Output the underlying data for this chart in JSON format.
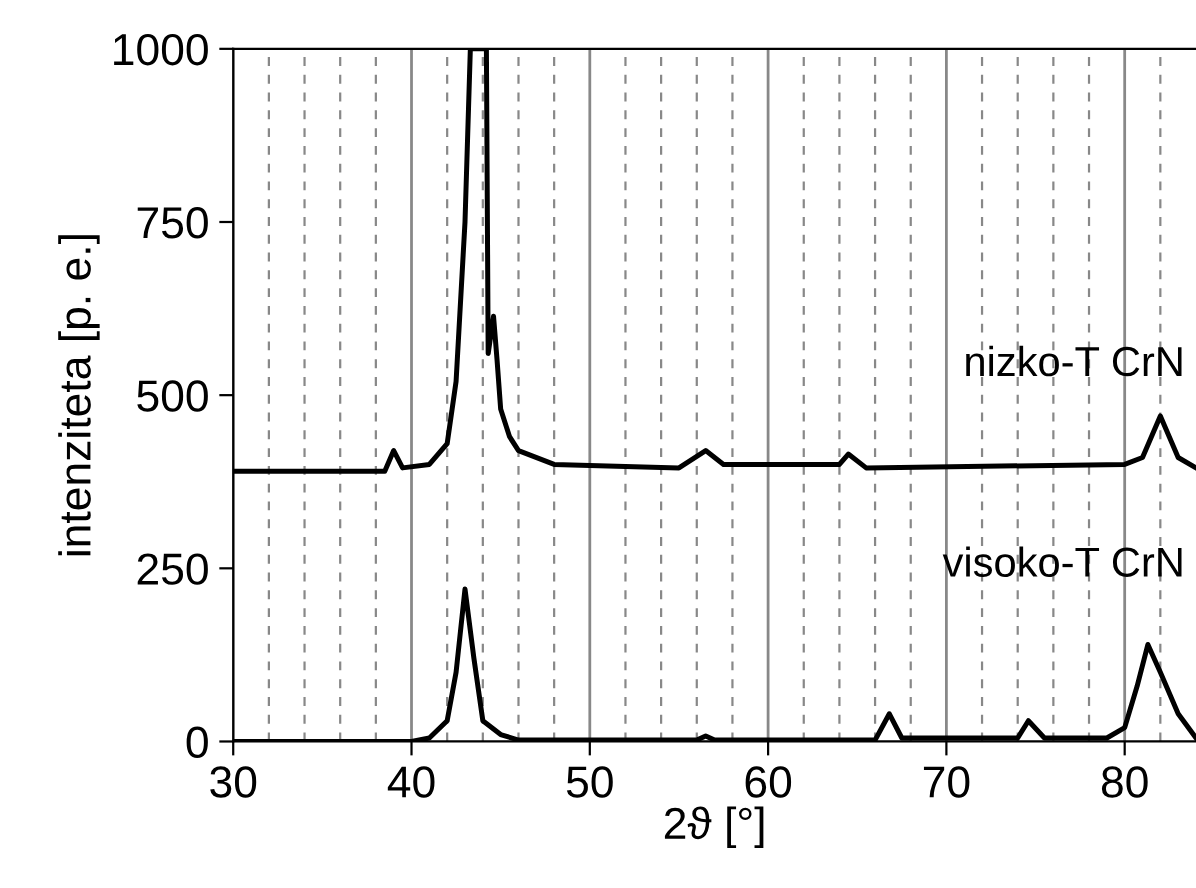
{
  "chart_data": {
    "type": "line",
    "xlabel": "2ϑ [°]",
    "ylabel": "intenziteta [p. e.]",
    "xlim": [
      30,
      84
    ],
    "ylim": [
      0,
      1000
    ],
    "xticks": [
      30,
      {
        "value": 32,
        "label": null
      },
      {
        "value": 34,
        "label": null
      },
      {
        "value": 36,
        "label": null
      },
      {
        "value": 38,
        "label": null
      },
      40,
      {
        "value": 42,
        "label": null
      },
      {
        "value": 44,
        "label": null
      },
      {
        "value": 46,
        "label": null
      },
      {
        "value": 48,
        "label": null
      },
      50,
      {
        "value": 52,
        "label": null
      },
      {
        "value": 54,
        "label": null
      },
      {
        "value": 56,
        "label": null
      },
      {
        "value": 58,
        "label": null
      },
      60,
      {
        "value": 62,
        "label": null
      },
      {
        "value": 64,
        "label": null
      },
      {
        "value": 66,
        "label": null
      },
      {
        "value": 68,
        "label": null
      },
      70,
      {
        "value": 72,
        "label": null
      },
      {
        "value": 74,
        "label": null
      },
      {
        "value": 76,
        "label": null
      },
      {
        "value": 78,
        "label": null
      },
      80,
      {
        "value": 82,
        "label": null
      }
    ],
    "yticks": [
      0,
      250,
      500,
      750,
      1000
    ],
    "grid": "x",
    "legend": false,
    "marker": "none",
    "line_style": "solid",
    "series": [
      {
        "name": "nizko-T CrN",
        "color": "#000000",
        "x": [
          30,
          38.5,
          39,
          39.5,
          41,
          42,
          42.5,
          43,
          43.3,
          44.2,
          44.3,
          44.6,
          44.8,
          45,
          45.5,
          46,
          48,
          55,
          56.5,
          57.5,
          64,
          64.5,
          65.5,
          80,
          81,
          81.5,
          82,
          82.5,
          83,
          84
        ],
        "values": [
          390,
          390,
          420,
          395,
          400,
          430,
          520,
          750,
          1000,
          1000,
          560,
          614,
          550,
          480,
          440,
          420,
          400,
          395,
          420,
          400,
          400,
          415,
          395,
          400,
          410,
          440,
          470,
          440,
          410,
          395
        ]
      },
      {
        "name": "visoko-T CrN",
        "color": "#000000",
        "x": [
          30,
          40,
          41,
          42,
          42.5,
          43,
          43.5,
          44,
          45,
          46,
          56,
          56.5,
          57,
          66,
          66.8,
          67.5,
          74,
          74.6,
          75.5,
          79,
          80,
          80.7,
          81.3,
          82,
          83,
          84
        ],
        "values": [
          0,
          0,
          5,
          30,
          100,
          220,
          120,
          30,
          10,
          2,
          2,
          8,
          2,
          2,
          40,
          5,
          5,
          30,
          5,
          5,
          20,
          80,
          140,
          100,
          40,
          5
        ]
      }
    ]
  }
}
